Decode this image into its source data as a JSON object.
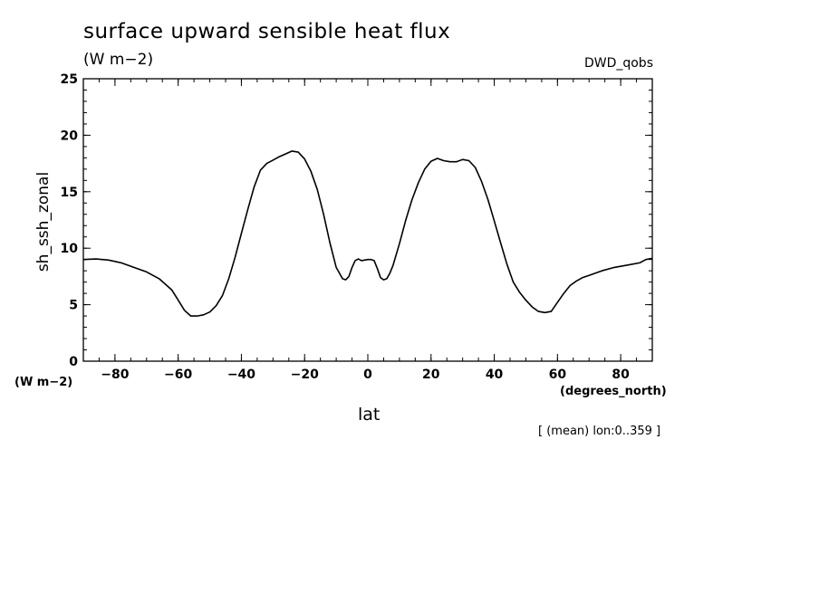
{
  "chart_data": {
    "type": "line",
    "title": "surface upward sensible heat flux",
    "units": "(W m−2)",
    "dataset": "DWD_qobs",
    "ylabel": "sh_ssh_zonal",
    "yunits_left": "(W m−2)",
    "xlabel": "lat",
    "xunits": "(degrees_north)",
    "footnote": "[ (mean) lon:0..359 ]",
    "xlim": [
      -90,
      90
    ],
    "ylim": [
      0,
      25
    ],
    "xticks": [
      -80,
      -60,
      -40,
      -20,
      0,
      20,
      40,
      60,
      80
    ],
    "xtick_labels": [
      "−80",
      "−60",
      "−40",
      "−20",
      "0",
      "20",
      "40",
      "60",
      "80"
    ],
    "yticks": [
      0,
      5,
      10,
      15,
      20,
      25
    ],
    "ytick_labels": [
      "0",
      "5",
      "10",
      "15",
      "20",
      "25"
    ],
    "grid": false,
    "series": [
      {
        "x": [
          -90,
          -86,
          -82,
          -78,
          -74,
          -70,
          -66,
          -62,
          -60,
          -58,
          -56,
          -54,
          -52,
          -50,
          -48,
          -46,
          -44,
          -42,
          -40,
          -38,
          -36,
          -34,
          -32,
          -30,
          -28,
          -26,
          -24,
          -22,
          -20,
          -18,
          -16,
          -14,
          -12,
          -10,
          -8,
          -7,
          -6,
          -5,
          -4,
          -3,
          -2,
          -1,
          0,
          1,
          2,
          3,
          4,
          5,
          6,
          7,
          8,
          10,
          12,
          14,
          16,
          18,
          20,
          22,
          24,
          26,
          28,
          30,
          32,
          34,
          36,
          38,
          40,
          42,
          44,
          46,
          48,
          50,
          52,
          54,
          56,
          58,
          60,
          62,
          64,
          66,
          68,
          70,
          74,
          78,
          82,
          86,
          88,
          90
        ],
        "y": [
          9.0,
          9.05,
          8.95,
          8.7,
          8.3,
          7.9,
          7.3,
          6.3,
          5.4,
          4.5,
          4.0,
          4.0,
          4.1,
          4.35,
          4.9,
          5.8,
          7.3,
          9.2,
          11.3,
          13.4,
          15.4,
          16.9,
          17.5,
          17.8,
          18.1,
          18.35,
          18.6,
          18.5,
          17.9,
          16.8,
          15.2,
          13.0,
          10.5,
          8.3,
          7.3,
          7.2,
          7.5,
          8.3,
          8.9,
          9.05,
          8.9,
          8.95,
          9.0,
          9.0,
          8.9,
          8.2,
          7.4,
          7.2,
          7.3,
          7.8,
          8.5,
          10.4,
          12.5,
          14.3,
          15.8,
          17.0,
          17.7,
          17.95,
          17.75,
          17.65,
          17.65,
          17.85,
          17.75,
          17.15,
          15.9,
          14.3,
          12.4,
          10.5,
          8.6,
          7.0,
          6.1,
          5.4,
          4.8,
          4.4,
          4.3,
          4.4,
          5.2,
          6.0,
          6.7,
          7.1,
          7.4,
          7.6,
          8.0,
          8.3,
          8.5,
          8.7,
          9.0,
          9.1
        ]
      }
    ]
  }
}
